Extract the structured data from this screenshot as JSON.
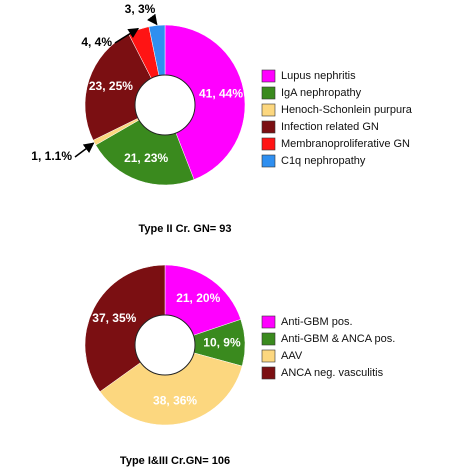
{
  "chart_data": [
    {
      "type": "pie",
      "donut": true,
      "title": "Type II Cr. GN= 93",
      "categories": [
        "Lupus nephritis",
        "IgA nephropathy",
        "Henoch-Schonlein purpura",
        "Infection related GN",
        "Membranoproliferative GN",
        "C1q nephropathy"
      ],
      "values": [
        41,
        21,
        1,
        23,
        4,
        3
      ],
      "value_labels": [
        "41, 44%",
        "21, 23%",
        "1, 1.1%",
        "23, 25%",
        "4, 4%",
        "3, 3%"
      ],
      "colors": [
        "#ff00ff",
        "#3a8a1e",
        "#fcd77f",
        "#7b0f12",
        "#ff1414",
        "#2f8ff0"
      ]
    },
    {
      "type": "pie",
      "donut": true,
      "title": "Type I&III Cr.GN= 106",
      "categories": [
        "Anti-GBM pos.",
        "Anti-GBM & ANCA pos.",
        "AAV",
        "ANCA neg. vasculitis"
      ],
      "values": [
        21,
        10,
        38,
        37
      ],
      "value_labels": [
        "21, 20%",
        "10, 9%",
        "38, 36%",
        "37, 35%"
      ],
      "colors": [
        "#ff00ff",
        "#3a8a1e",
        "#fcd77f",
        "#7b0f12"
      ]
    }
  ]
}
